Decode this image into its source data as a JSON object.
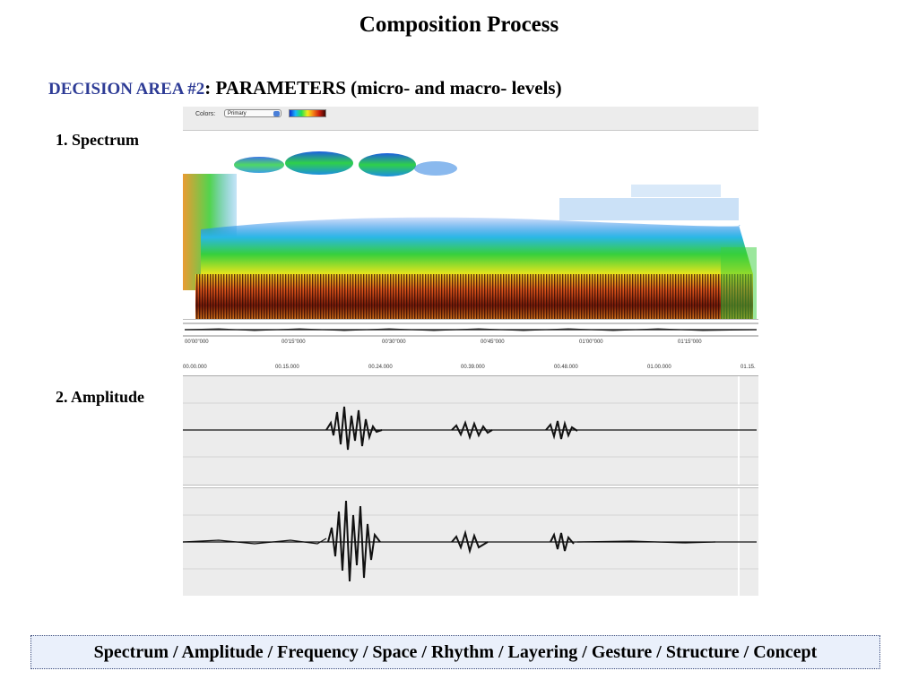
{
  "slide": {
    "title": "Composition Process",
    "decision_label": "DECISION AREA #2",
    "decision_rest": ": PARAMETERS (micro- and macro- levels)",
    "spectrum_label": "1. Spectrum",
    "amplitude_label": "2. Amplitude",
    "parameters_list": "Spectrum / Amplitude / Frequency / Space / Rhythm / Layering / Gesture / Structure / Concept"
  },
  "spectrogram_panel": {
    "colors_label": "Colors:",
    "colors_value": "Primary",
    "time_ticks": [
      "00'00\"000",
      "00'15\"000",
      "00'30\"000",
      "00'45\"000",
      "01'00\"000",
      "01'15\"000"
    ]
  },
  "amplitude_panel": {
    "ruler_ticks": [
      "00.00.000",
      "00.15.000",
      "00.24.000",
      "00.39.000",
      "00.48.000",
      "01.00.000",
      "01.15."
    ]
  },
  "colors": {
    "decision_blue": "#2e3c96",
    "box_fill": "#eaf0fb"
  }
}
